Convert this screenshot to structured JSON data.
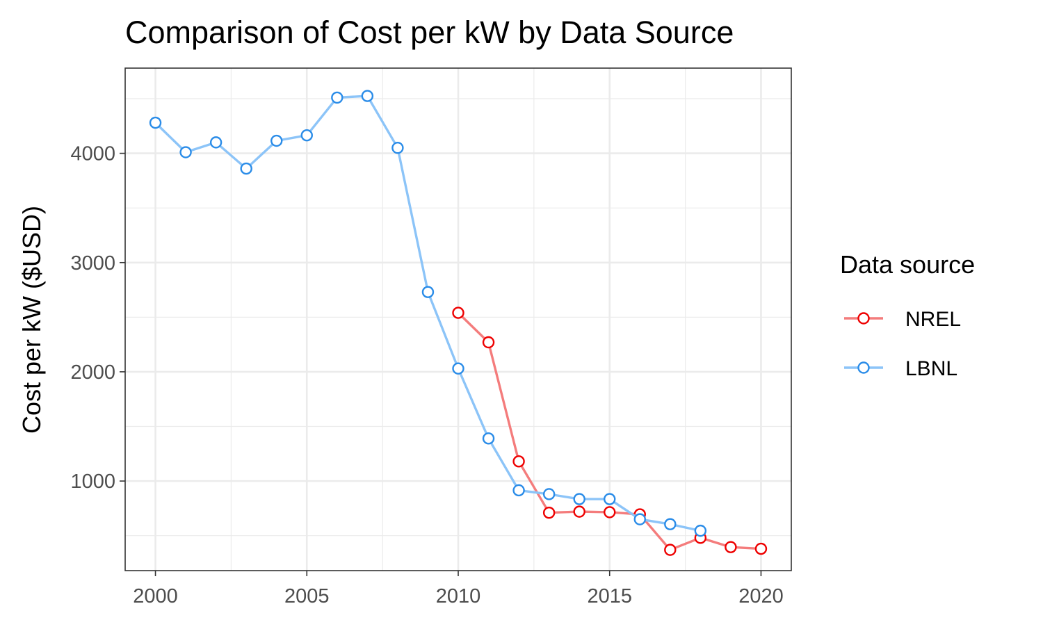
{
  "chart_data": {
    "type": "line",
    "title": "Comparison of Cost per kW by Data Source",
    "xlabel": "",
    "ylabel": "Cost per kW ($USD)",
    "xlim": [
      1999,
      2021
    ],
    "ylim": [
      180,
      4780
    ],
    "x_ticks": [
      2000,
      2005,
      2010,
      2015,
      2020
    ],
    "y_ticks": [
      1000,
      2000,
      3000,
      4000
    ],
    "grid": true,
    "legend": {
      "title": "Data source",
      "placement": "right"
    },
    "series": [
      {
        "name": "NREL",
        "color": "#EE0000",
        "line_color": "#F47C7C",
        "x": [
          2010,
          2011,
          2012,
          2013,
          2014,
          2015,
          2016,
          2017,
          2018,
          2019,
          2020
        ],
        "y": [
          2540,
          2270,
          1180,
          710,
          720,
          715,
          695,
          370,
          480,
          395,
          380
        ]
      },
      {
        "name": "LBNL",
        "color": "#2A8CE8",
        "line_color": "#8CC4F8",
        "x": [
          2000,
          2001,
          2002,
          2003,
          2004,
          2005,
          2006,
          2007,
          2008,
          2009,
          2010,
          2011,
          2012,
          2013,
          2014,
          2015,
          2016,
          2017,
          2018
        ],
        "y": [
          4280,
          4010,
          4100,
          3860,
          4115,
          4165,
          4510,
          4525,
          4050,
          2730,
          2030,
          1390,
          915,
          880,
          835,
          835,
          650,
          605,
          545
        ]
      }
    ]
  }
}
